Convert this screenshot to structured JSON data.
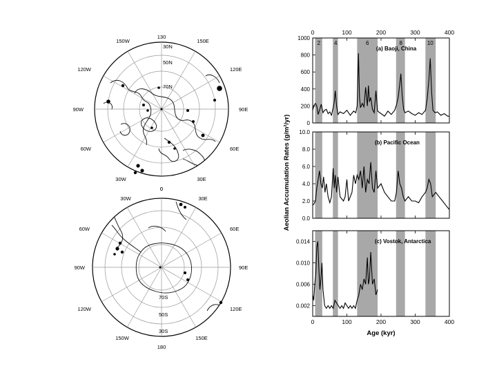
{
  "maps": {
    "north": {
      "lon_labels": {
        "top": "130",
        "top_left": "150W",
        "top_right": "150E",
        "left_upper": "120W",
        "right_upper": "120E",
        "left": "90W",
        "right": "90E",
        "left_lower": "60W",
        "right_lower": "60E",
        "bottom_left": "30W",
        "bottom_right": "30E",
        "bottom": "0"
      },
      "lat_labels": [
        "30N",
        "50N",
        "70N"
      ]
    },
    "south": {
      "lon_labels": {
        "top": "0",
        "top_left": "30W",
        "top_right": "30E",
        "left_upper": "60W",
        "right_upper": "60E",
        "left": "90W",
        "right": "90E",
        "left_lower": "120W",
        "right_lower": "120E",
        "bottom_left": "150W",
        "bottom_right": "150E",
        "bottom": "180"
      },
      "lat_labels": [
        "70S",
        "50S",
        "30S"
      ]
    }
  },
  "chart_data": [
    {
      "type": "line",
      "title": "(a) Baoji, China",
      "ylim": [
        0,
        1000
      ],
      "yticks": [
        "0",
        "200",
        "400",
        "600",
        "800",
        "1000"
      ],
      "shaded_bands_kyr": [
        [
          7,
          28
        ],
        [
          59,
          74
        ],
        [
          130,
          190
        ],
        [
          244,
          270
        ],
        [
          330,
          360
        ]
      ],
      "band_labels": [
        {
          "label": "2",
          "x": 18
        },
        {
          "label": "4",
          "x": 67
        },
        {
          "label": "6",
          "x": 160
        },
        {
          "label": "8",
          "x": 258
        },
        {
          "label": "10",
          "x": 344
        }
      ],
      "x": [
        0,
        4,
        8,
        12,
        16,
        20,
        25,
        30,
        35,
        40,
        45,
        50,
        55,
        60,
        63,
        66,
        70,
        74,
        80,
        90,
        100,
        110,
        120,
        126,
        130,
        134,
        137,
        140,
        145,
        150,
        155,
        160,
        163,
        166,
        170,
        175,
        180,
        185,
        190,
        200,
        210,
        220,
        230,
        240,
        245,
        250,
        255,
        258,
        262,
        266,
        270,
        280,
        290,
        300,
        310,
        320,
        330,
        335,
        340,
        344,
        348,
        352,
        358,
        365,
        375,
        385,
        395,
        400
      ],
      "y": [
        150,
        210,
        230,
        200,
        100,
        150,
        220,
        120,
        150,
        160,
        110,
        130,
        90,
        180,
        250,
        380,
        200,
        100,
        130,
        110,
        150,
        90,
        140,
        120,
        200,
        820,
        300,
        180,
        230,
        190,
        420,
        200,
        440,
        250,
        300,
        160,
        120,
        380,
        140,
        110,
        80,
        140,
        100,
        150,
        210,
        300,
        460,
        580,
        320,
        160,
        120,
        140,
        110,
        90,
        120,
        100,
        150,
        280,
        500,
        760,
        360,
        150,
        120,
        130,
        90,
        110,
        80,
        80
      ]
    },
    {
      "type": "line",
      "title": "(b) Pacific Ocean",
      "ylim": [
        0,
        10
      ],
      "yticks": [
        "0.0",
        "2.0",
        "4.0",
        "6.0",
        "8.0",
        "10.0"
      ],
      "shaded_bands_kyr": [
        [
          7,
          28
        ],
        [
          59,
          74
        ],
        [
          130,
          190
        ],
        [
          244,
          270
        ],
        [
          330,
          360
        ]
      ],
      "x": [
        0,
        4,
        8,
        12,
        16,
        20,
        24,
        28,
        32,
        36,
        40,
        45,
        50,
        55,
        60,
        63,
        66,
        70,
        74,
        80,
        90,
        95,
        100,
        105,
        110,
        115,
        120,
        125,
        130,
        135,
        140,
        145,
        150,
        155,
        160,
        165,
        170,
        175,
        180,
        185,
        190,
        200,
        210,
        220,
        230,
        240,
        245,
        250,
        255,
        260,
        265,
        270,
        280,
        290,
        300,
        310,
        320,
        330,
        335,
        340,
        345,
        350,
        360,
        370,
        380,
        390,
        400
      ],
      "y": [
        1.5,
        1.7,
        2.0,
        3.5,
        4.5,
        5.5,
        4.0,
        3.5,
        4.8,
        3.0,
        4.0,
        2.5,
        1.8,
        2.5,
        5.8,
        3.5,
        5.0,
        3.0,
        4.8,
        2.5,
        2.0,
        2.5,
        4.5,
        2.0,
        2.5,
        3.0,
        5.0,
        4.0,
        5.0,
        4.5,
        5.5,
        3.5,
        6.0,
        3.0,
        4.5,
        4.0,
        6.5,
        3.5,
        3.0,
        5.5,
        3.5,
        4.0,
        3.0,
        2.5,
        2.0,
        2.0,
        3.0,
        5.5,
        4.0,
        3.5,
        2.5,
        2.0,
        2.5,
        2.0,
        2.0,
        1.8,
        2.5,
        3.0,
        3.5,
        4.5,
        4.0,
        2.5,
        3.0,
        2.5,
        2.0,
        1.5,
        1.0
      ]
    },
    {
      "type": "line",
      "title": "(c) Vostok, Antarctica",
      "ylim": [
        0,
        0.016
      ],
      "yticks": [
        "0.002",
        "0.006",
        "0.010",
        "0.014"
      ],
      "shaded_bands_kyr": [
        [
          7,
          28
        ],
        [
          59,
          74
        ],
        [
          130,
          190
        ],
        [
          244,
          270
        ],
        [
          330,
          360
        ]
      ],
      "xlabel": "Age (kyr)",
      "xticks": [
        "0",
        "100",
        "200",
        "300",
        "400"
      ],
      "xlim": [
        0,
        400
      ],
      "x": [
        0,
        3,
        6,
        9,
        12,
        15,
        18,
        21,
        24,
        27,
        30,
        35,
        40,
        45,
        50,
        55,
        60,
        65,
        70,
        75,
        80,
        85,
        90,
        95,
        100,
        105,
        110,
        115,
        120,
        125,
        130,
        135,
        140,
        145,
        150,
        155,
        160,
        163,
        166,
        170,
        175,
        180,
        185,
        190
      ],
      "y": [
        0.004,
        0.003,
        0.006,
        0.008,
        0.013,
        0.014,
        0.009,
        0.005,
        0.007,
        0.01,
        0.005,
        0.002,
        0.0015,
        0.002,
        0.0015,
        0.002,
        0.0015,
        0.003,
        0.0025,
        0.002,
        0.0015,
        0.002,
        0.0015,
        0.0025,
        0.002,
        0.0015,
        0.002,
        0.0015,
        0.002,
        0.0015,
        0.003,
        0.004,
        0.006,
        0.005,
        0.007,
        0.006,
        0.011,
        0.006,
        0.007,
        0.012,
        0.006,
        0.007,
        0.004,
        0.005
      ]
    }
  ],
  "axes": {
    "top_ticks": [
      "0",
      "100",
      "200",
      "300",
      "400"
    ],
    "ylabel": "Aeolian Accumulation Rates (g/m²/yr)"
  }
}
